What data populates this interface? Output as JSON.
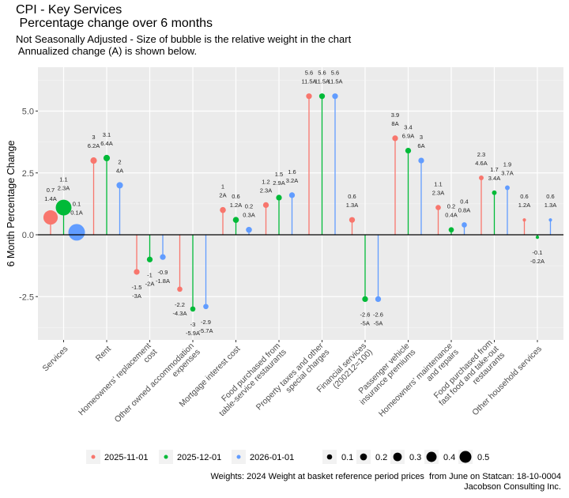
{
  "chart_data": {
    "type": "scatter",
    "title": "CPI - Key Services",
    "title_line2": " Percentage change over 6 months",
    "subtitle": "Not Seasonally Adjusted - Size of bubble is the relative weight in the chart",
    "subtitle_line2": " Annualized change (A) is shown below.",
    "ylabel": "6 Month Percentage Change",
    "ylim": [
      -4.5,
      6.9
    ],
    "yticks": [
      {
        "v": 5.0,
        "label": "5.0"
      },
      {
        "v": 2.5,
        "label": "2.5"
      },
      {
        "v": 0,
        "label": "0.0"
      },
      {
        "v": -2.5,
        "label": "-2.5"
      }
    ],
    "grid": true,
    "categories": [
      [
        "Services"
      ],
      [
        "Rent"
      ],
      [
        "Homeowners' replacement",
        "cost"
      ],
      [
        "Other owned accommodation",
        "expenses"
      ],
      [
        "Mortgage interest cost"
      ],
      [
        "Food purchased from",
        "table-service restaurants"
      ],
      [
        "Property taxes and other",
        "special charges"
      ],
      [
        "Financial services",
        "(200212=100)"
      ],
      [
        "Passenger vehicle",
        "insurance premiums"
      ],
      [
        "Homeowners' maintenance",
        "and repairs"
      ],
      [
        "Food purchased from",
        "fast food and take-out",
        "restaurants"
      ],
      [
        "Other household services"
      ]
    ],
    "series": [
      {
        "name": "2025-11-01",
        "color": "#F8766D",
        "values": [
          0.7,
          3.0,
          -1.5,
          -2.2,
          1.0,
          1.2,
          5.6,
          0.6,
          3.9,
          1.1,
          2.3,
          0.6
        ],
        "labels": [
          "0.7",
          "3",
          "-1.5",
          "-2.2",
          "1",
          "1.2",
          "5.6",
          "0.6",
          "3.9",
          "1.1",
          "2.3",
          "0.6"
        ],
        "annualized": [
          "1.4A",
          "6.2A",
          "-3A",
          "-4.3A",
          "2A",
          "2.3A",
          "11.5A",
          "1.3A",
          "8A",
          "2.3A",
          "4.6A",
          "1.2A"
        ],
        "weights": [
          0.75,
          0.15,
          0.12,
          0.1,
          0.13,
          0.12,
          0.12,
          0.12,
          0.12,
          0.1,
          0.08,
          0.04
        ]
      },
      {
        "name": "2025-12-01",
        "color": "#00BA38",
        "values": [
          1.1,
          3.1,
          -1.0,
          -3.0,
          0.6,
          1.5,
          5.6,
          -2.6,
          3.4,
          0.2,
          1.7,
          -0.1
        ],
        "labels": [
          "1.1",
          "3.1",
          "-1",
          "-3",
          "0.6",
          "1.5",
          "5.6",
          "-2.6",
          "3.4",
          "0.2",
          "1.7",
          "-0.1"
        ],
        "annualized": [
          "2.3A",
          "6.4A",
          "-2A",
          "-5.9A",
          "1.2A",
          "2.9A",
          "11.5A",
          "-5A",
          "6.9A",
          "0.4A",
          "3.4A",
          "-0.2A"
        ],
        "weights": [
          0.9,
          0.15,
          0.12,
          0.1,
          0.13,
          0.12,
          0.12,
          0.12,
          0.12,
          0.1,
          0.08,
          0.04
        ]
      },
      {
        "name": "2026-01-01",
        "color": "#619CFF",
        "values": [
          0.1,
          2.0,
          -0.9,
          -2.9,
          0.2,
          1.6,
          5.6,
          -2.6,
          3.0,
          0.4,
          1.9,
          0.6
        ],
        "labels": [
          "0.1",
          "2",
          "-0.9",
          "-2.9",
          "0.2",
          "1.6",
          "5.6",
          "-2.6",
          "3",
          "0.4",
          "1.9",
          "0.6"
        ],
        "annualized": [
          "0.1A",
          "4A",
          "-1.8A",
          "-5.7A",
          "0.3A",
          "3.2A",
          "11.5A",
          "-5A",
          "6A",
          "0.8A",
          "3.7A",
          "1.3A"
        ],
        "weights": [
          1.0,
          0.15,
          0.12,
          0.1,
          0.13,
          0.12,
          0.12,
          0.12,
          0.12,
          0.1,
          0.08,
          0.04
        ]
      }
    ],
    "size_legend": [
      {
        "v": 0.1,
        "label": "0.1"
      },
      {
        "v": 0.2,
        "label": "0.2"
      },
      {
        "v": 0.3,
        "label": "0.3"
      },
      {
        "v": 0.4,
        "label": "0.4"
      },
      {
        "v": 0.5,
        "label": "0.5"
      }
    ],
    "legend_position": "bottom",
    "caption": "Weights: 2024 Weight at basket reference period prices  from June on Statcan: 18-10-0004",
    "caption_line2": "Jacobson Consulting Inc."
  }
}
